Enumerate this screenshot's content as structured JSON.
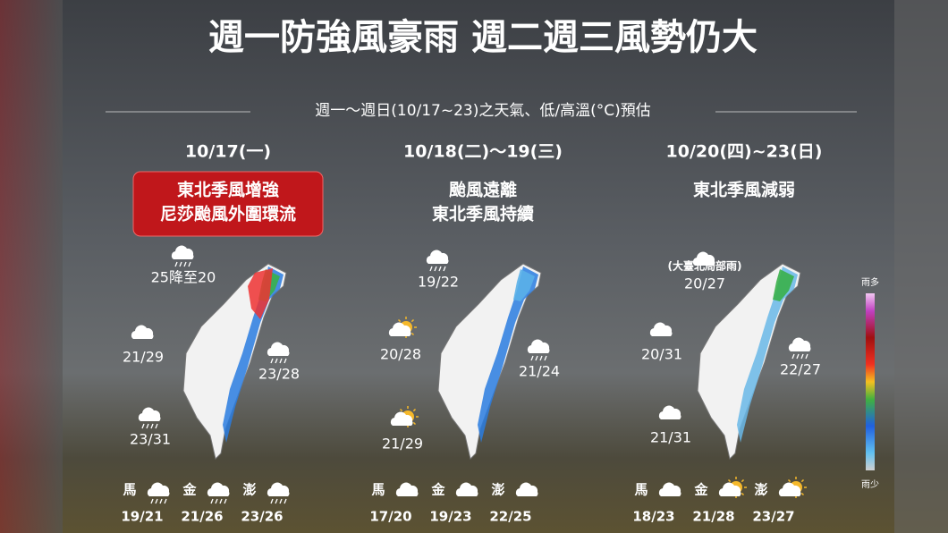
{
  "title": "週一防強風豪雨  週二週三風勢仍大",
  "subtitle": "週一～週日(10/17~23)之天氣、低/高溫(°C)預估",
  "panels": [
    {
      "date": "10/17(一)",
      "headline": [
        "東北季風增強",
        "尼莎颱風外圍環流"
      ],
      "highlight": true,
      "regions": [
        {
          "temp": "25降至20",
          "icon": "rain"
        },
        {
          "temp": "21/29",
          "icon": "cloud"
        },
        {
          "temp": "23/28",
          "icon": "rain"
        },
        {
          "temp": "23/31",
          "icon": "rain"
        }
      ],
      "islands": [
        {
          "name": "馬",
          "temp": "19/21",
          "icon": "rain"
        },
        {
          "name": "金",
          "temp": "21/26",
          "icon": "rain"
        },
        {
          "name": "澎",
          "temp": "23/26",
          "icon": "rain"
        }
      ]
    },
    {
      "date": "10/18(二)～19(三)",
      "headline": [
        "颱風遠離",
        "東北季風持續"
      ],
      "highlight": false,
      "regions": [
        {
          "temp": "19/22",
          "icon": "rain"
        },
        {
          "temp": "20/28",
          "icon": "sun"
        },
        {
          "temp": "21/24",
          "icon": "rain"
        },
        {
          "temp": "21/29",
          "icon": "sun"
        }
      ],
      "islands": [
        {
          "name": "馬",
          "temp": "17/20",
          "icon": "cloud"
        },
        {
          "name": "金",
          "temp": "19/23",
          "icon": "cloud"
        },
        {
          "name": "澎",
          "temp": "22/25",
          "icon": "cloud"
        }
      ]
    },
    {
      "date": "10/20(四)~23(日)",
      "headline": [
        "東北季風減弱"
      ],
      "highlight": false,
      "regions": [
        {
          "temp": "20/27",
          "icon": "cloud",
          "note": "(大臺北局部雨)"
        },
        {
          "temp": "20/31",
          "icon": "cloud"
        },
        {
          "temp": "22/27",
          "icon": "rain"
        },
        {
          "temp": "21/31",
          "icon": "cloud"
        }
      ],
      "islands": [
        {
          "name": "馬",
          "temp": "18/23",
          "icon": "cloud"
        },
        {
          "name": "金",
          "temp": "21/28",
          "icon": "sun"
        },
        {
          "name": "澎",
          "temp": "23/27",
          "icon": "sun"
        }
      ]
    }
  ],
  "legend": {
    "top": "雨多",
    "bottom": "雨少"
  }
}
